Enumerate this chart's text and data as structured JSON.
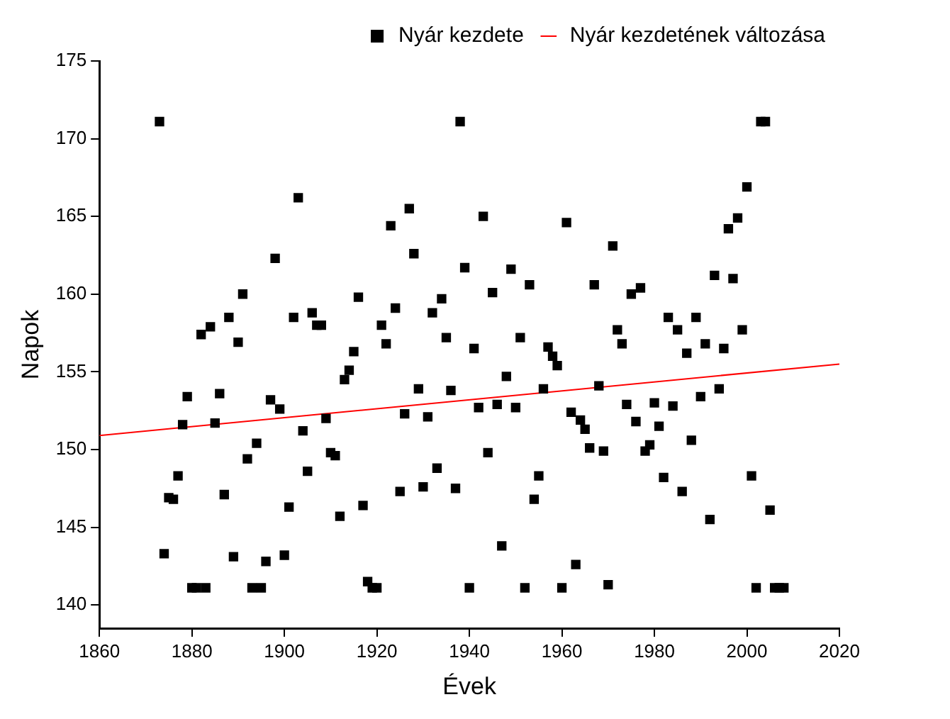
{
  "chart_data": {
    "type": "scatter",
    "xlabel": "Évek",
    "ylabel": "Napok",
    "xlim": [
      1860,
      2020
    ],
    "xticks": [
      1860,
      1880,
      1900,
      1920,
      1940,
      1960,
      1980,
      2000,
      2020
    ],
    "ylim": [
      138.5,
      175
    ],
    "yticks": [
      140,
      145,
      150,
      155,
      160,
      165,
      170,
      175
    ],
    "grid": false,
    "legend": "top right",
    "marker": "square",
    "series": [
      {
        "name": "Nyár kezdete",
        "type": "scatter",
        "color": "#000000",
        "x": [
          1873,
          1874,
          1875,
          1876,
          1877,
          1878,
          1879,
          1880,
          1881,
          1882,
          1883,
          1884,
          1885,
          1886,
          1887,
          1888,
          1889,
          1890,
          1891,
          1892,
          1893,
          1894,
          1895,
          1896,
          1897,
          1898,
          1899,
          1900,
          1901,
          1902,
          1903,
          1904,
          1905,
          1906,
          1907,
          1908,
          1909,
          1910,
          1911,
          1912,
          1913,
          1914,
          1915,
          1916,
          1917,
          1918,
          1919,
          1920,
          1921,
          1922,
          1923,
          1924,
          1925,
          1926,
          1927,
          1928,
          1929,
          1930,
          1931,
          1932,
          1933,
          1934,
          1935,
          1936,
          1937,
          1938,
          1939,
          1940,
          1941,
          1942,
          1943,
          1944,
          1945,
          1946,
          1947,
          1948,
          1949,
          1950,
          1951,
          1952,
          1953,
          1954,
          1955,
          1956,
          1957,
          1958,
          1959,
          1960,
          1961,
          1962,
          1963,
          1964,
          1965,
          1966,
          1967,
          1968,
          1969,
          1970,
          1971,
          1972,
          1973,
          1974,
          1975,
          1976,
          1977,
          1978,
          1979,
          1980,
          1981,
          1982,
          1983,
          1984,
          1985,
          1986,
          1987,
          1988,
          1989,
          1990,
          1991,
          1992,
          1993,
          1994,
          1995,
          1996,
          1997,
          1998,
          1999,
          2000,
          2001,
          2002,
          2003,
          2004,
          2005,
          2006,
          2007,
          2008
        ],
        "values": [
          171.1,
          143.3,
          146.9,
          146.8,
          148.3,
          151.6,
          153.4,
          141.1,
          141.1,
          157.4,
          141.1,
          157.9,
          151.7,
          153.6,
          147.1,
          158.5,
          143.1,
          156.9,
          160.0,
          149.4,
          141.1,
          150.4,
          141.1,
          142.8,
          153.2,
          162.3,
          152.6,
          143.2,
          146.3,
          158.5,
          166.2,
          151.2,
          148.6,
          158.8,
          158.0,
          158.0,
          152.0,
          149.8,
          149.6,
          145.7,
          154.5,
          155.1,
          156.3,
          159.8,
          146.4,
          141.5,
          141.1,
          141.1,
          158.0,
          156.8,
          164.4,
          159.1,
          147.3,
          152.3,
          165.5,
          162.6,
          153.9,
          147.6,
          152.1,
          158.8,
          148.8,
          159.7,
          157.2,
          153.8,
          147.5,
          171.1,
          161.7,
          141.1,
          156.5,
          152.7,
          165.0,
          149.8,
          160.1,
          152.9,
          143.8,
          154.7,
          161.6,
          152.7,
          157.2,
          141.1,
          160.6,
          146.8,
          148.3,
          153.9,
          156.6,
          156.0,
          155.4,
          141.1,
          164.6,
          152.4,
          142.6,
          151.9,
          151.3,
          150.1,
          160.6,
          154.1,
          149.9,
          141.3,
          163.1,
          157.7,
          156.8,
          152.9,
          160.0,
          151.8,
          160.4,
          149.9,
          150.3,
          153.0,
          151.5,
          148.2,
          158.5,
          152.8,
          157.7,
          147.3,
          156.2,
          150.6,
          158.5,
          153.4,
          156.8,
          145.5,
          161.2,
          153.9,
          156.5,
          164.2,
          161.0,
          164.9,
          157.7,
          166.9,
          148.3,
          141.1,
          171.1,
          171.1,
          146.1,
          141.1,
          141.1,
          141.1
        ]
      },
      {
        "name": "Nyár kezdetének változása",
        "type": "line",
        "color": "#ff0000",
        "marker": "none",
        "x": [
          1860,
          2020
        ],
        "values": [
          150.9,
          155.5
        ]
      }
    ]
  }
}
